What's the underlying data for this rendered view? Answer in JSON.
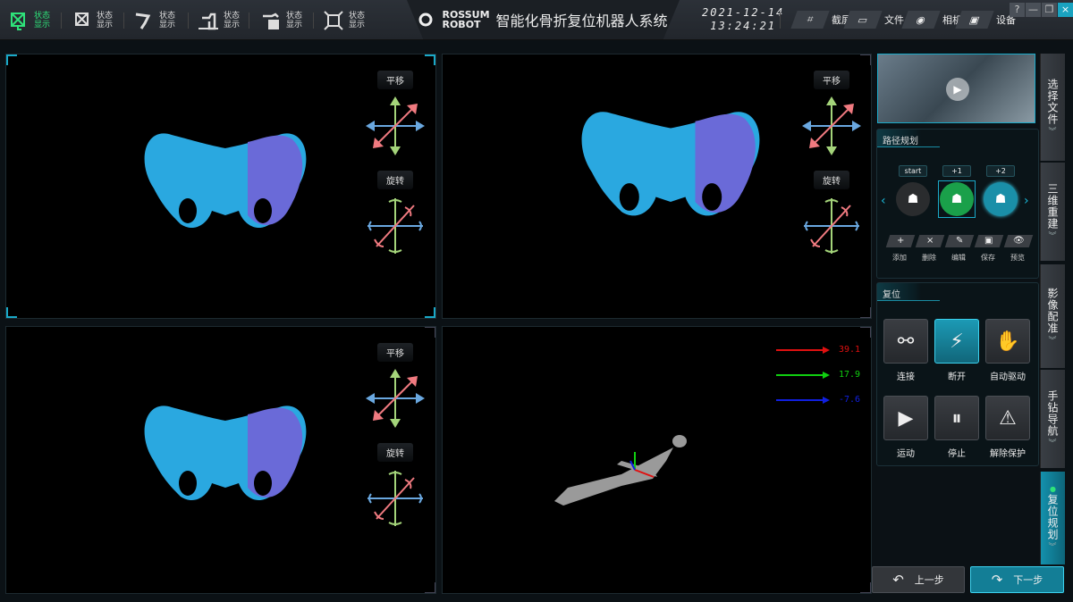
{
  "toolbar": {
    "items": [
      {
        "label": "状态显示",
        "icon": "bone-frame-icon",
        "active": true
      },
      {
        "label": "状态显示",
        "icon": "frame-pointer-icon"
      },
      {
        "label": "状态显示",
        "icon": "drill-icon"
      },
      {
        "label": "状态显示",
        "icon": "robot-arm-icon"
      },
      {
        "label": "状态显示",
        "icon": "robot-station-icon"
      },
      {
        "label": "状态显示",
        "icon": "square-frame-icon"
      }
    ]
  },
  "header": {
    "logo": "ROSSUM ROBOT",
    "title": "智能化骨折复位机器人系统",
    "date": "2021-12-14",
    "time": "13:24:21"
  },
  "actions": [
    {
      "label": "截屏",
      "icon": "crop-icon"
    },
    {
      "label": "文件",
      "icon": "folder-icon"
    },
    {
      "label": "相机",
      "icon": "camera-icon"
    },
    {
      "label": "设备",
      "icon": "monitor-icon"
    }
  ],
  "window": {
    "help": "?",
    "minimize": "—",
    "restore": "❐",
    "close": "×"
  },
  "viewports": {
    "translate": "平移",
    "rotate": "旋转"
  },
  "axes_readout": [
    {
      "value": "39.1",
      "color": "#e01010"
    },
    {
      "value": "17.9",
      "color": "#10d010"
    },
    {
      "value": "-7.6",
      "color": "#1020e0"
    }
  ],
  "path_planning": {
    "title": "路径规划",
    "nodes": [
      {
        "tag": "start",
        "color": "#2a2c2e"
      },
      {
        "tag": "+1",
        "color": "#1aa04a"
      },
      {
        "tag": "+2",
        "color": "#1a8fa8"
      }
    ],
    "buttons": [
      {
        "label": "添加",
        "glyph": "+"
      },
      {
        "label": "删除",
        "glyph": "×"
      },
      {
        "label": "编辑",
        "glyph": "✎"
      },
      {
        "label": "保存",
        "glyph": "▣"
      },
      {
        "label": "预览",
        "glyph": "👁"
      }
    ]
  },
  "reset": {
    "title": "复位",
    "buttons": [
      {
        "label": "连接",
        "icon": "plug-connect-icon"
      },
      {
        "label": "断开",
        "icon": "plug-disconnect-icon",
        "active": true
      },
      {
        "label": "自动驱动",
        "icon": "robot-hand-icon"
      },
      {
        "label": "运动",
        "icon": "play-cycle-icon"
      },
      {
        "label": "停止",
        "icon": "pause-cycle-icon"
      },
      {
        "label": "解除保护",
        "icon": "robot-shield-icon"
      }
    ]
  },
  "tabs": [
    {
      "label": "选择文件"
    },
    {
      "label": "三维重建"
    },
    {
      "label": "影像配准"
    },
    {
      "label": "手钻导航"
    },
    {
      "label": "复位规划",
      "active": true
    }
  ],
  "nav": {
    "prev": "上一步",
    "next": "下一步"
  }
}
